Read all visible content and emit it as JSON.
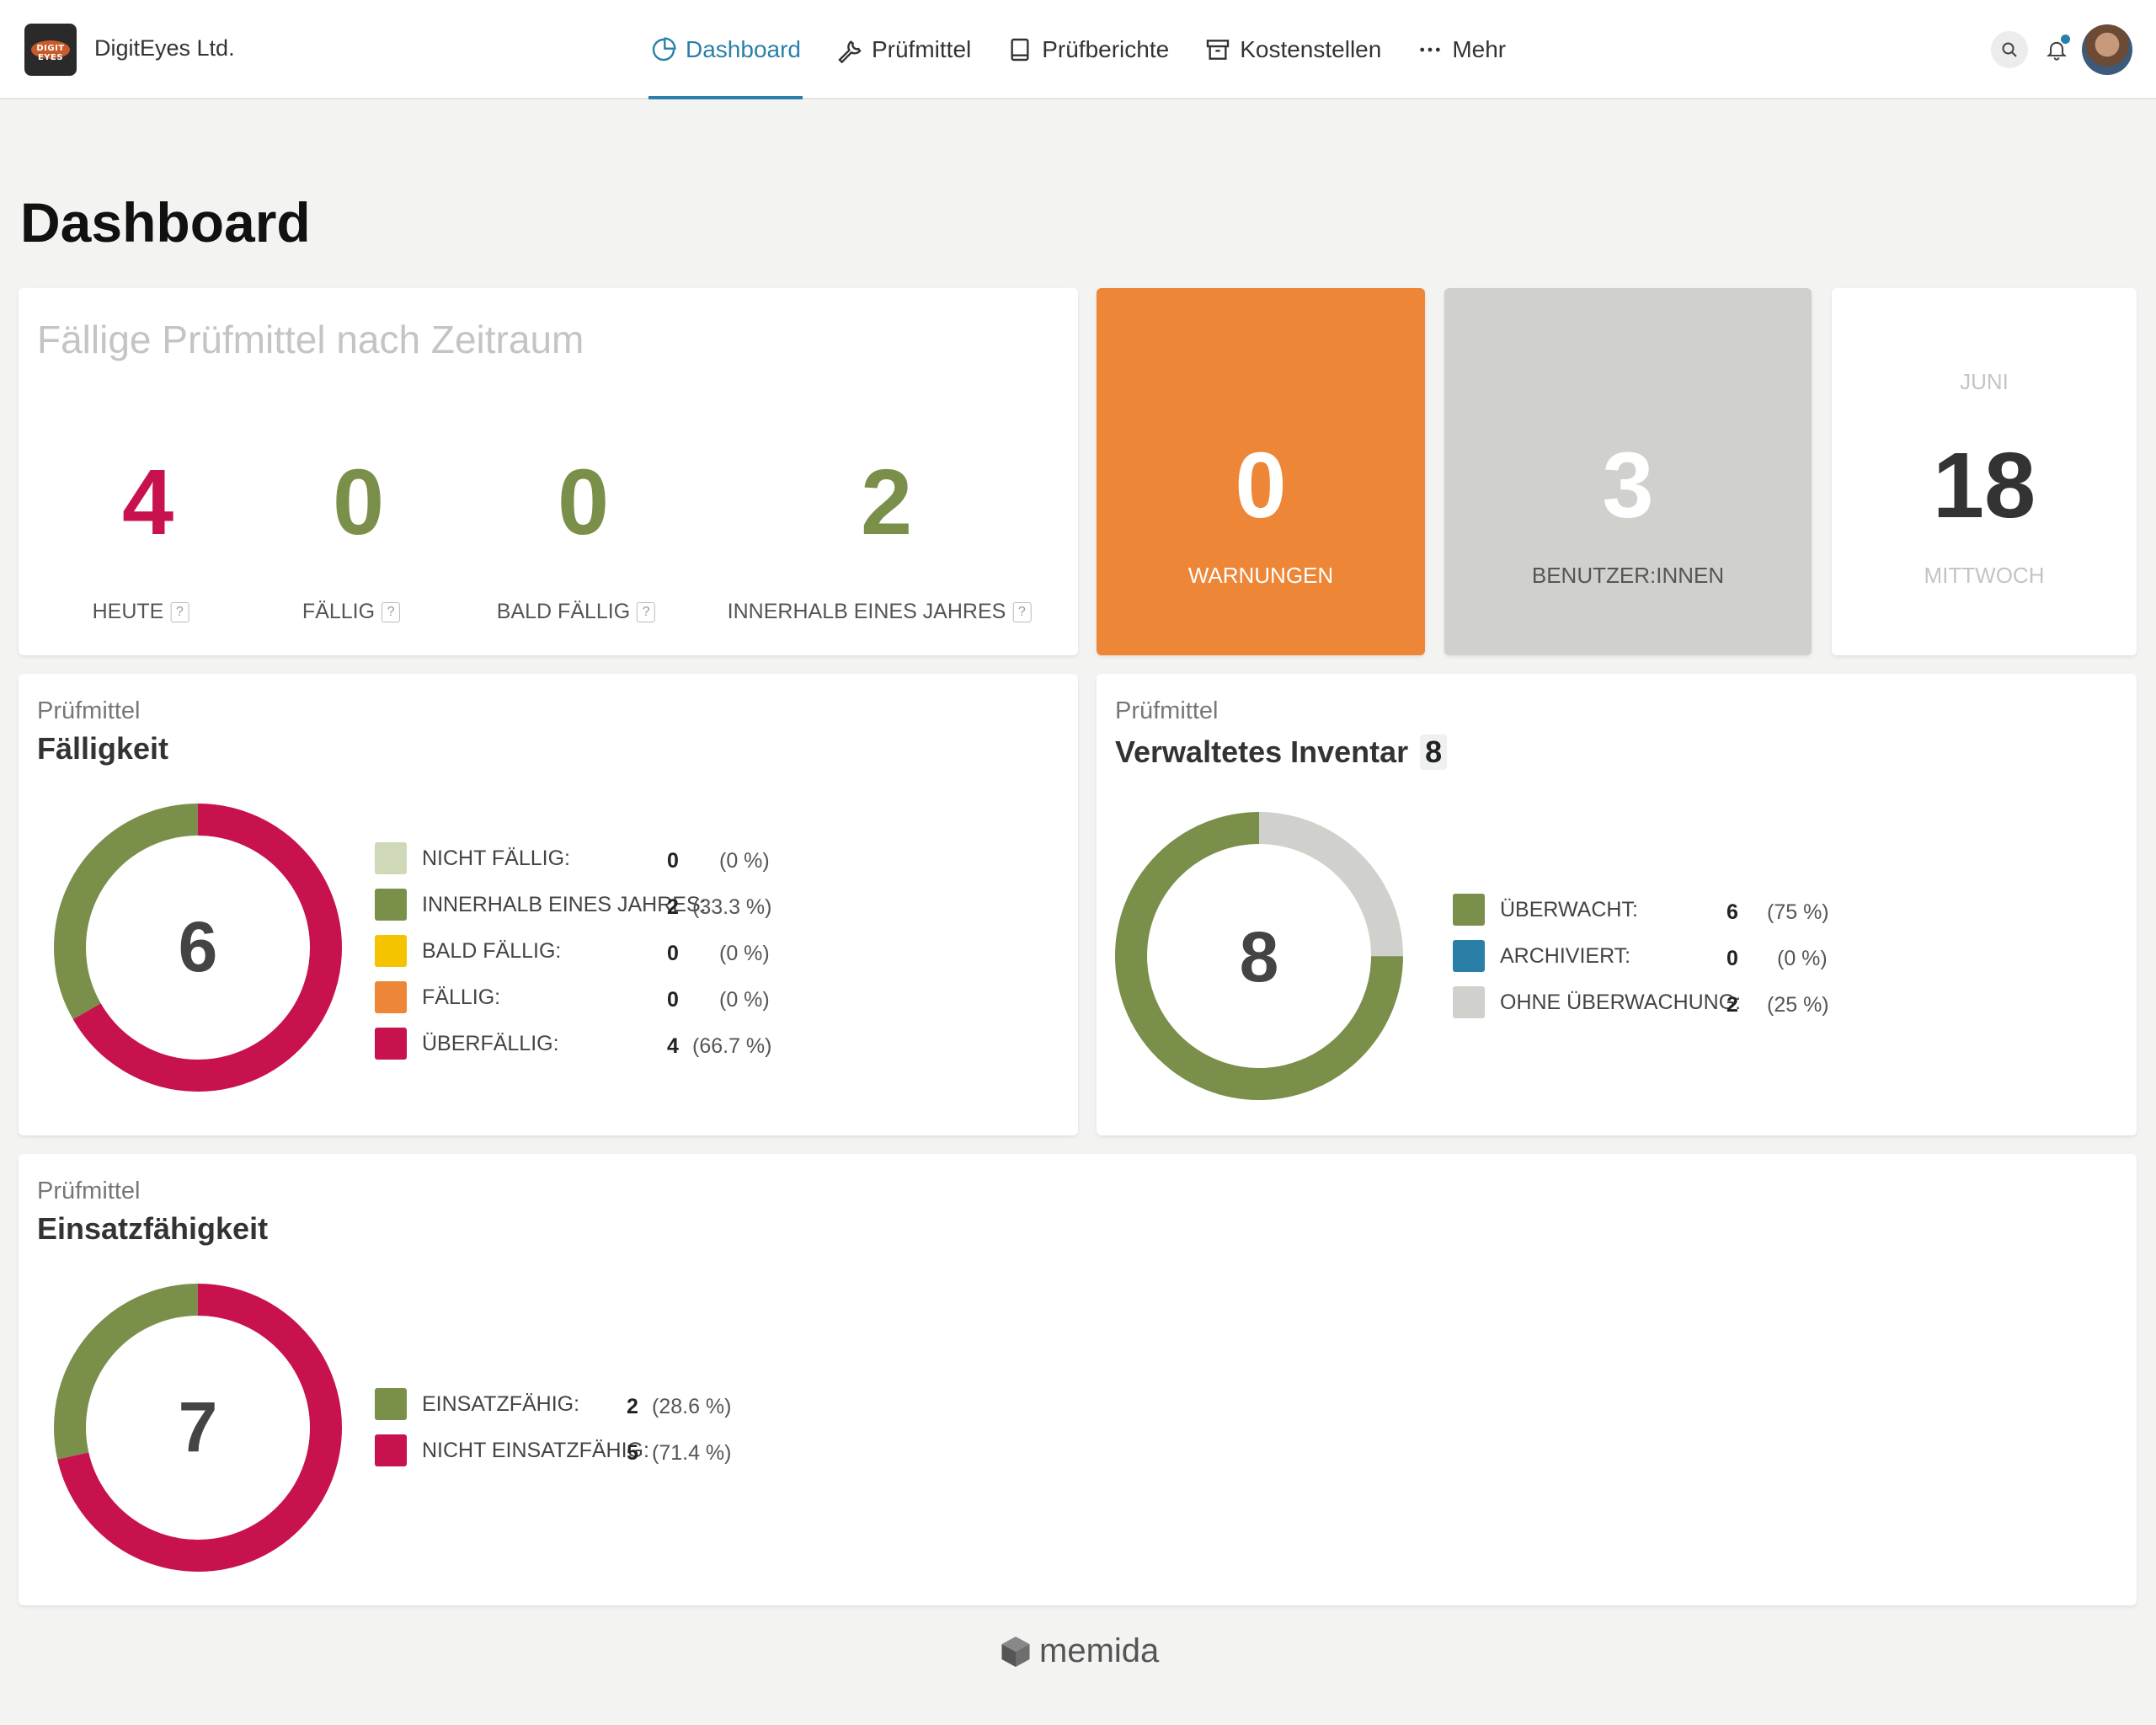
{
  "header": {
    "company": "DigitEyes Ltd.",
    "logo_text": "DIGIT EYES",
    "nav": [
      {
        "label": "Dashboard",
        "icon": "pie-chart-icon",
        "active": true
      },
      {
        "label": "Prüfmittel",
        "icon": "wrench-icon",
        "active": false
      },
      {
        "label": "Prüfberichte",
        "icon": "book-icon",
        "active": false
      },
      {
        "label": "Kostenstellen",
        "icon": "archive-box-icon",
        "active": false
      },
      {
        "label": "Mehr",
        "icon": "more-dots-icon",
        "active": false
      }
    ]
  },
  "page": {
    "title": "Dashboard"
  },
  "due_by_period": {
    "title": "Fällige Prüfmittel nach Zeitraum",
    "stats": [
      {
        "value": "4",
        "label": "HEUTE",
        "color": "#c8124e"
      },
      {
        "value": "0",
        "label": "FÄLLIG",
        "color": "#7a8f4a"
      },
      {
        "value": "0",
        "label": "BALD FÄLLIG",
        "color": "#7a8f4a"
      },
      {
        "value": "2",
        "label": "INNERHALB EINES JAHRES",
        "color": "#7a8f4a"
      }
    ],
    "help_mark": "?"
  },
  "tiles": {
    "warnings": {
      "value": "0",
      "label": "WARNUNGEN",
      "bg": "#ed8636"
    },
    "users": {
      "value": "3",
      "label": "BENUTZER:INNEN",
      "bg": "#d0d0cc"
    },
    "date": {
      "month": "JUNI",
      "day": "18",
      "weekday": "MITTWOCH"
    }
  },
  "faelligkeit": {
    "subtitle": "Prüfmittel",
    "title": "Fälligkeit",
    "total": "6",
    "legend": [
      {
        "label": "NICHT FÄLLIG:",
        "count": "0",
        "pct": "(0 %)",
        "color": "#cfd8b8"
      },
      {
        "label": "INNERHALB EINES JAHRES:",
        "count": "2",
        "pct": "(33.3 %)",
        "color": "#7a8f4a"
      },
      {
        "label": "BALD FÄLLIG:",
        "count": "0",
        "pct": "(0 %)",
        "color": "#f5c400"
      },
      {
        "label": "FÄLLIG:",
        "count": "0",
        "pct": "(0 %)",
        "color": "#ed8636"
      },
      {
        "label": "ÜBERFÄLLIG:",
        "count": "4",
        "pct": "(66.7 %)",
        "color": "#c8124e"
      }
    ],
    "segments": [
      2,
      4
    ]
  },
  "inventar": {
    "subtitle": "Prüfmittel",
    "title": "Verwaltetes Inventar",
    "badge": "8",
    "total": "8",
    "legend": [
      {
        "label": "ÜBERWACHT:",
        "count": "6",
        "pct": "(75 %)",
        "color": "#7a8f4a"
      },
      {
        "label": "ARCHIVIERT:",
        "count": "0",
        "pct": "(0 %)",
        "color": "#2a7fa9"
      },
      {
        "label": "OHNE ÜBERWACHUNG:",
        "count": "2",
        "pct": "(25 %)",
        "color": "#d0d0cc"
      }
    ],
    "segments": [
      6,
      2
    ]
  },
  "einsatz": {
    "subtitle": "Prüfmittel",
    "title": "Einsatzfähigkeit",
    "total": "7",
    "legend": [
      {
        "label": "EINSATZFÄHIG:",
        "count": "2",
        "pct": "(28.6 %)",
        "color": "#7a8f4a"
      },
      {
        "label": "NICHT EINSATZFÄHIG:",
        "count": "5",
        "pct": "(71.4 %)",
        "color": "#c8124e"
      }
    ],
    "segments": [
      2,
      5
    ]
  },
  "footer": {
    "brand": "memida"
  }
}
